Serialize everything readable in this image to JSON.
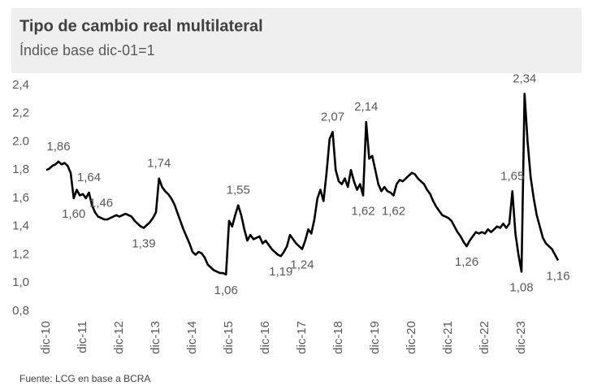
{
  "chart_data": {
    "type": "line",
    "title": "Tipo de cambio real multilateral",
    "subtitle": "Índice base dic-01=1",
    "source": "Fuente: LCG en base a BCRA",
    "color": "#000000",
    "ylim": [
      0.8,
      2.4
    ],
    "yticks": [
      {
        "value": 2.4,
        "label": "2,4"
      },
      {
        "value": 2.2,
        "label": "2,2"
      },
      {
        "value": 2.0,
        "label": "2.0"
      },
      {
        "value": 1.8,
        "label": "1,8"
      },
      {
        "value": 1.6,
        "label": "1,6"
      },
      {
        "value": 1.4,
        "label": "1,4"
      },
      {
        "value": 1.2,
        "label": "1,2"
      },
      {
        "value": 1.0,
        "label": "1,0"
      },
      {
        "value": 0.8,
        "label": "0,8"
      }
    ],
    "categories": [
      "dic-10",
      null,
      null,
      null,
      null,
      null,
      null,
      null,
      null,
      null,
      null,
      null,
      "dic-11",
      null,
      null,
      null,
      null,
      null,
      null,
      null,
      null,
      null,
      null,
      null,
      "dic-12",
      null,
      null,
      null,
      null,
      null,
      null,
      null,
      null,
      null,
      null,
      null,
      "dic-13",
      null,
      null,
      null,
      null,
      null,
      null,
      null,
      null,
      null,
      null,
      null,
      "dic-14",
      null,
      null,
      null,
      null,
      null,
      null,
      null,
      null,
      null,
      null,
      null,
      "dic-15",
      null,
      null,
      null,
      null,
      null,
      null,
      null,
      null,
      null,
      null,
      null,
      "dic-16",
      null,
      null,
      null,
      null,
      null,
      null,
      null,
      null,
      null,
      null,
      null,
      "dic-17",
      null,
      null,
      null,
      null,
      null,
      null,
      null,
      null,
      null,
      null,
      null,
      "dic-18",
      null,
      null,
      null,
      null,
      null,
      null,
      null,
      null,
      null,
      null,
      null,
      "dic-19",
      null,
      null,
      null,
      null,
      null,
      null,
      null,
      null,
      null,
      null,
      null,
      "dic-20",
      null,
      null,
      null,
      null,
      null,
      null,
      null,
      null,
      null,
      null,
      null,
      "dic-21",
      null,
      null,
      null,
      null,
      null,
      null,
      null,
      null,
      null,
      null,
      null,
      "dic-22",
      null,
      null,
      null,
      null,
      null,
      null,
      null,
      null,
      null,
      null,
      null,
      "dic-23",
      null,
      null,
      null,
      null,
      null,
      null,
      null,
      null,
      null,
      null,
      null,
      null
    ],
    "values": [
      1.8,
      1.81,
      1.83,
      1.84,
      1.86,
      1.84,
      1.85,
      1.83,
      1.78,
      1.6,
      1.66,
      1.62,
      1.63,
      1.6,
      1.64,
      1.55,
      1.5,
      1.47,
      1.46,
      1.45,
      1.45,
      1.46,
      1.47,
      1.48,
      1.47,
      1.48,
      1.49,
      1.48,
      1.47,
      1.44,
      1.42,
      1.4,
      1.39,
      1.41,
      1.43,
      1.46,
      1.5,
      1.74,
      1.68,
      1.65,
      1.63,
      1.6,
      1.56,
      1.5,
      1.44,
      1.38,
      1.33,
      1.28,
      1.22,
      1.2,
      1.22,
      1.21,
      1.18,
      1.13,
      1.11,
      1.09,
      1.08,
      1.07,
      1.07,
      1.06,
      1.44,
      1.4,
      1.48,
      1.55,
      1.48,
      1.38,
      1.3,
      1.34,
      1.31,
      1.32,
      1.33,
      1.28,
      1.3,
      1.27,
      1.24,
      1.22,
      1.2,
      1.19,
      1.22,
      1.26,
      1.34,
      1.31,
      1.28,
      1.26,
      1.24,
      1.3,
      1.38,
      1.35,
      1.45,
      1.6,
      1.66,
      1.58,
      1.78,
      2.02,
      2.07,
      1.8,
      1.72,
      1.7,
      1.74,
      1.68,
      1.8,
      1.72,
      1.66,
      1.7,
      1.62,
      2.14,
      1.88,
      1.9,
      1.8,
      1.7,
      1.65,
      1.68,
      1.65,
      1.64,
      1.62,
      1.7,
      1.73,
      1.72,
      1.74,
      1.76,
      1.78,
      1.77,
      1.74,
      1.72,
      1.7,
      1.66,
      1.63,
      1.58,
      1.54,
      1.51,
      1.48,
      1.47,
      1.46,
      1.44,
      1.4,
      1.36,
      1.33,
      1.29,
      1.26,
      1.3,
      1.33,
      1.36,
      1.35,
      1.36,
      1.35,
      1.38,
      1.36,
      1.38,
      1.4,
      1.39,
      1.42,
      1.39,
      1.42,
      1.65,
      1.35,
      1.2,
      1.08,
      2.34,
      2.0,
      1.75,
      1.6,
      1.48,
      1.4,
      1.32,
      1.28,
      1.26,
      1.24,
      1.2,
      1.16
    ],
    "value_labels": [
      null,
      null,
      null,
      null,
      "1,86",
      null,
      null,
      null,
      null,
      "1,60",
      null,
      null,
      null,
      null,
      "1,64",
      null,
      null,
      null,
      "1,46",
      null,
      null,
      null,
      null,
      null,
      null,
      null,
      null,
      null,
      null,
      null,
      null,
      null,
      "1,39",
      null,
      null,
      null,
      null,
      "1,74",
      null,
      null,
      null,
      null,
      null,
      null,
      null,
      null,
      null,
      null,
      null,
      null,
      null,
      null,
      null,
      null,
      null,
      null,
      null,
      null,
      null,
      "1,06",
      null,
      null,
      null,
      "1,55",
      null,
      null,
      null,
      null,
      null,
      null,
      null,
      null,
      null,
      null,
      null,
      null,
      null,
      "1,19",
      null,
      null,
      null,
      null,
      null,
      null,
      "1,24",
      null,
      null,
      null,
      null,
      null,
      null,
      null,
      null,
      null,
      "2,07",
      null,
      null,
      null,
      null,
      null,
      null,
      null,
      null,
      null,
      "1,62",
      "2,14",
      null,
      null,
      null,
      null,
      null,
      null,
      null,
      null,
      "1,62",
      null,
      null,
      null,
      null,
      null,
      null,
      null,
      null,
      null,
      null,
      null,
      null,
      null,
      null,
      null,
      null,
      null,
      null,
      null,
      null,
      null,
      null,
      null,
      "1,26",
      null,
      null,
      null,
      null,
      null,
      null,
      null,
      null,
      null,
      null,
      null,
      null,
      null,
      null,
      "1,65",
      null,
      null,
      "1,08",
      "2,34",
      null,
      null,
      null,
      null,
      null,
      null,
      null,
      null,
      null,
      null,
      "1,16"
    ]
  }
}
